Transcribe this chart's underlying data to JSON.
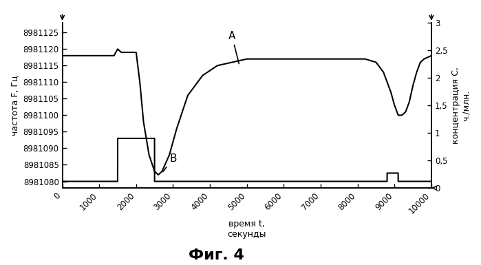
{
  "title": "Фиг. 4",
  "xlabel": "время t,\nсекунды",
  "ylabel_left": "частота F, Гц",
  "ylabel_right": "концентрация С,\nч./млн.",
  "xlim": [
    0,
    10000
  ],
  "ylim_left": [
    8981078,
    8981128
  ],
  "ylim_right": [
    0,
    3
  ],
  "xticks": [
    0,
    1000,
    2000,
    3000,
    4000,
    5000,
    6000,
    7000,
    8000,
    9000,
    10000
  ],
  "yticks_left": [
    8981080,
    8981085,
    8981090,
    8981095,
    8981100,
    8981105,
    8981110,
    8981115,
    8981120,
    8981125
  ],
  "yticks_right": [
    0,
    0.5,
    1,
    1.5,
    2,
    2.5,
    3
  ],
  "ytick_labels_right": [
    "0",
    "0,5",
    "1",
    "1,5",
    "2",
    "2,5",
    "3"
  ],
  "curve_color": "#000000",
  "background_color": "#ffffff",
  "label_A": "A",
  "label_B": "B",
  "curve_A_x": [
    0,
    1400,
    1500,
    1600,
    2000,
    2100,
    2200,
    2350,
    2500,
    2600,
    2700,
    2900,
    3100,
    3400,
    3800,
    4200,
    4600,
    5000,
    5400,
    5800,
    6200,
    6600,
    7000,
    7400,
    7800,
    8200,
    8500,
    8700,
    8800,
    8900,
    9000,
    9100,
    9200,
    9300,
    9400,
    9500,
    9600,
    9700,
    9800,
    10000
  ],
  "curve_A_y": [
    8981118,
    8981118,
    8981120,
    8981119,
    8981119,
    8981110,
    8981098,
    8981088,
    8981083,
    8981082,
    8981083,
    8981088,
    8981096,
    8981106,
    8981112,
    8981115,
    8981116,
    8981117,
    8981117,
    8981117,
    8981117,
    8981117,
    8981117,
    8981117,
    8981117,
    8981117,
    8981116,
    8981113,
    8981110,
    8981107,
    8981103,
    8981100,
    8981100,
    8981101,
    8981104,
    8981109,
    8981113,
    8981116,
    8981117,
    8981118
  ],
  "curve_B_x": [
    0,
    1499,
    1500,
    2499,
    2500,
    8799,
    8800,
    9099,
    9100,
    10000
  ],
  "curve_B_y": [
    8981080,
    8981080,
    8981093,
    8981093,
    8981080,
    8981080,
    8981082.5,
    8981082.5,
    8981080,
    8981080
  ]
}
